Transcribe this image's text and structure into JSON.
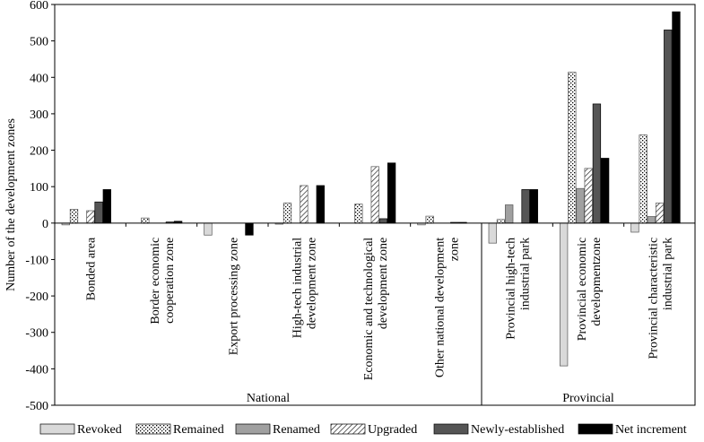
{
  "chart_data": {
    "type": "bar",
    "title": "",
    "xlabel": "",
    "ylabel": "Number of the development zones",
    "ylim": [
      -500,
      600
    ],
    "yticks": [
      -500,
      -400,
      -300,
      -200,
      -100,
      0,
      100,
      200,
      300,
      400,
      500,
      600
    ],
    "grid": false,
    "legend_position": "bottom",
    "categories": [
      "Bonded area",
      "Border economic cooperation zone",
      "Export processing zone",
      "High-tech industrial development zone",
      "Economic and technological development zone",
      "Other national development zone",
      "Provincial high-tech industrial park",
      "Provincial economic developmentzone",
      "Provincial characteristic industrial park"
    ],
    "category_label_lines": [
      [
        "Bonded area"
      ],
      [
        "Border economic",
        "cooperation zone"
      ],
      [
        "Export processing zone"
      ],
      [
        "High-tech industrial",
        "development zone"
      ],
      [
        "Economic and technological",
        "development zone"
      ],
      [
        "Other national development",
        "zone"
      ],
      [
        "Provincial high-tech",
        "industrial park"
      ],
      [
        "Provincial economic",
        "developmentzone"
      ],
      [
        "Provincial characteristic",
        "industrial park"
      ]
    ],
    "groups": [
      {
        "label": "National",
        "categories": [
          0,
          1,
          2,
          3,
          4,
          5
        ]
      },
      {
        "label": "Provincial",
        "categories": [
          6,
          7,
          8
        ]
      }
    ],
    "series": [
      {
        "name": "Revoked",
        "pattern": "light",
        "values": [
          -5,
          0,
          -33,
          -3,
          0,
          -5,
          -55,
          -392,
          -25
        ]
      },
      {
        "name": "Remained",
        "pattern": "dots",
        "values": [
          38,
          14,
          0,
          55,
          52,
          19,
          10,
          414,
          242
        ]
      },
      {
        "name": "Renamed",
        "pattern": "medium",
        "values": [
          0,
          0,
          0,
          0,
          0,
          0,
          50,
          95,
          18
        ]
      },
      {
        "name": "Upgraded",
        "pattern": "hatch",
        "values": [
          34,
          0,
          0,
          103,
          155,
          0,
          0,
          150,
          55
        ]
      },
      {
        "name": "Newly-established",
        "pattern": "dark",
        "values": [
          58,
          3,
          0,
          0,
          12,
          2,
          92,
          327,
          530
        ]
      },
      {
        "name": "Net increment",
        "pattern": "black",
        "values": [
          92,
          5,
          -33,
          103,
          165,
          2,
          92,
          178,
          580
        ]
      }
    ],
    "colors": {
      "light": "#d9d9d9",
      "medium": "#a0a0a0",
      "dark": "#555555",
      "black": "#000000",
      "outline": "#555555"
    }
  }
}
